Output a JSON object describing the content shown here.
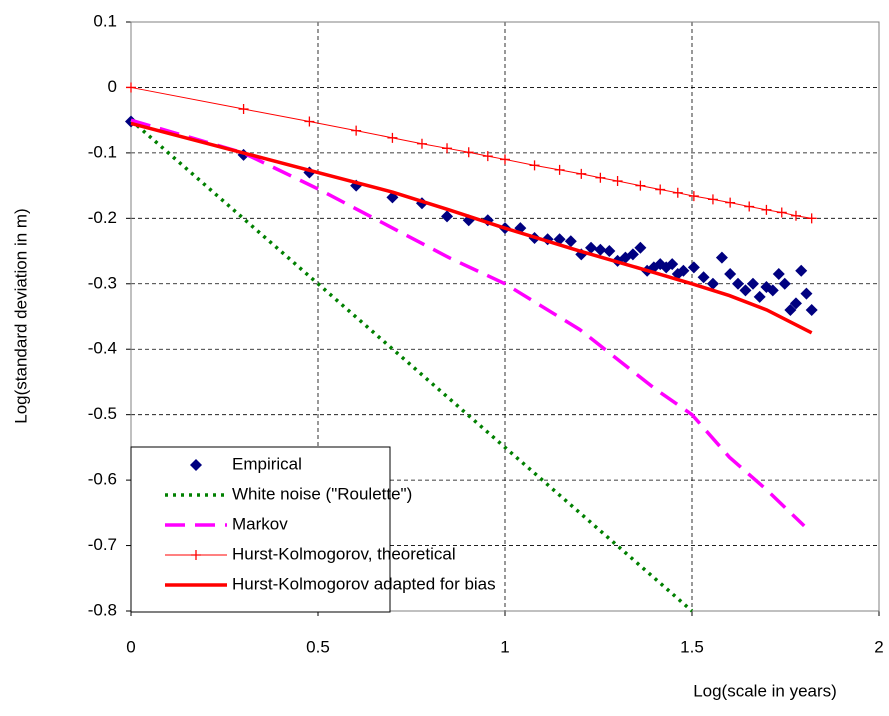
{
  "chart_data": {
    "type": "line",
    "xlabel": "Log(scale in years)",
    "ylabel": "Log(standard deviation in m)",
    "xlim": [
      0,
      2
    ],
    "xticks": [
      0,
      0.5,
      1,
      1.5,
      2
    ],
    "ylim": [
      -0.8,
      0.1
    ],
    "yticks": [
      0.1,
      0,
      -0.1,
      -0.2,
      -0.3,
      -0.4,
      -0.5,
      -0.6,
      -0.7,
      -0.8
    ],
    "grid": true,
    "legend": "lower left",
    "series": [
      {
        "name": "Empirical",
        "color": "#000080",
        "line": "none",
        "marker": "diamond",
        "x": [
          0,
          0.301,
          0.477,
          0.602,
          0.699,
          0.778,
          0.845,
          0.903,
          0.954,
          1,
          1.041,
          1.079,
          1.114,
          1.146,
          1.176,
          1.204,
          1.23,
          1.255,
          1.279,
          1.301,
          1.322,
          1.342,
          1.362,
          1.38,
          1.398,
          1.415,
          1.431,
          1.447,
          1.462,
          1.477,
          1.505,
          1.531,
          1.556,
          1.58,
          1.602,
          1.623,
          1.643,
          1.663,
          1.681,
          1.699,
          1.716,
          1.732,
          1.748,
          1.763,
          1.778,
          1.792,
          1.806,
          1.82
        ],
        "values": [
          -0.052,
          -0.103,
          -0.13,
          -0.15,
          -0.168,
          -0.177,
          -0.197,
          -0.203,
          -0.203,
          -0.215,
          -0.215,
          -0.23,
          -0.232,
          -0.232,
          -0.235,
          -0.255,
          -0.245,
          -0.248,
          -0.25,
          -0.265,
          -0.26,
          -0.255,
          -0.245,
          -0.28,
          -0.275,
          -0.27,
          -0.275,
          -0.27,
          -0.285,
          -0.28,
          -0.275,
          -0.29,
          -0.3,
          -0.26,
          -0.285,
          -0.3,
          -0.31,
          -0.3,
          -0.32,
          -0.305,
          -0.31,
          -0.285,
          -0.3,
          -0.34,
          -0.33,
          -0.28,
          -0.315,
          -0.34
        ]
      },
      {
        "name": "White noise (\"Roulette\")",
        "color": "#008000",
        "line": "dotted",
        "x": [
          0,
          1.5
        ],
        "values": [
          -0.05,
          -0.8
        ]
      },
      {
        "name": "Markov",
        "color": "#ff00ff",
        "line": "dashed",
        "x": [
          0,
          0.3,
          0.5,
          0.7,
          0.85,
          1,
          1.2,
          1.4,
          1.5,
          1.6,
          1.7,
          1.8
        ],
        "values": [
          -0.05,
          -0.1,
          -0.155,
          -0.215,
          -0.26,
          -0.3,
          -0.37,
          -0.46,
          -0.5,
          -0.565,
          -0.615,
          -0.67
        ]
      },
      {
        "name": "Hurst-Kolmogorov, theoretical",
        "color": "#ff0000",
        "line": "thin",
        "marker": "plus",
        "x": [
          0,
          0.301,
          0.477,
          0.602,
          0.699,
          0.778,
          0.845,
          0.903,
          0.954,
          1,
          1.079,
          1.146,
          1.204,
          1.255,
          1.301,
          1.362,
          1.415,
          1.462,
          1.505,
          1.556,
          1.602,
          1.653,
          1.699,
          1.74,
          1.778,
          1.82
        ],
        "values": [
          0,
          -0.033,
          -0.052,
          -0.066,
          -0.077,
          -0.086,
          -0.093,
          -0.099,
          -0.105,
          -0.11,
          -0.119,
          -0.126,
          -0.132,
          -0.138,
          -0.143,
          -0.15,
          -0.156,
          -0.161,
          -0.166,
          -0.171,
          -0.176,
          -0.182,
          -0.187,
          -0.191,
          -0.196,
          -0.2
        ]
      },
      {
        "name": "Hurst-Kolmogorov adapted for bias",
        "color": "#ff0000",
        "line": "thick",
        "x": [
          0,
          0.3,
          0.5,
          0.7,
          0.85,
          1,
          1.2,
          1.4,
          1.5,
          1.6,
          1.7,
          1.82
        ],
        "values": [
          -0.055,
          -0.1,
          -0.13,
          -0.16,
          -0.187,
          -0.215,
          -0.25,
          -0.283,
          -0.3,
          -0.318,
          -0.34,
          -0.375
        ]
      }
    ]
  }
}
